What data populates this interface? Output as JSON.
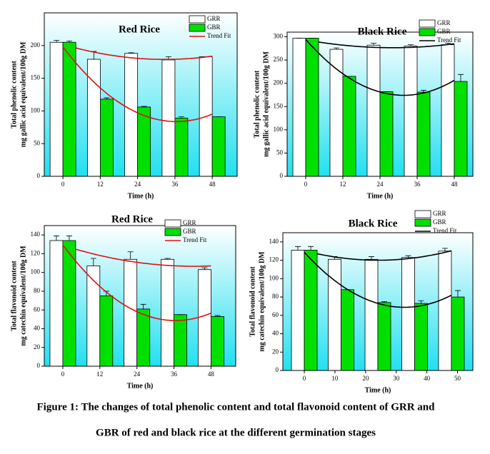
{
  "chart_data": [
    {
      "type": "bar",
      "title": "Red Rice",
      "xlabel": "Time (h)",
      "ylabel": [
        "Total phenolic content",
        "mg gallic acid equivalent/100g DM"
      ],
      "x": [
        0,
        12,
        24,
        36,
        48
      ],
      "xlim": [
        -6,
        56
      ],
      "xticks": [
        0,
        12,
        24,
        36,
        48
      ],
      "ylim": [
        0,
        250
      ],
      "yticks": [
        0,
        50,
        100,
        150,
        200
      ],
      "series": [
        {
          "name": "GRR",
          "color": "#ffffff",
          "values": [
            205,
            179,
            188,
            178,
            183
          ],
          "errors": [
            3,
            12,
            1,
            5,
            0
          ]
        },
        {
          "name": "GBR",
          "color": "#00e000",
          "values": [
            205,
            118,
            106,
            89,
            91
          ],
          "errors": [
            2,
            2,
            1,
            2,
            0
          ]
        }
      ],
      "trend_fit": {
        "name": "Trend Fit",
        "color": "#e01010"
      }
    },
    {
      "type": "bar",
      "title": "Black Rice",
      "xlabel": "Time (h)",
      "ylabel": [
        "Total phenolic content",
        "mg gallic acid equivalent/100g DM"
      ],
      "x": [
        0,
        12,
        24,
        36,
        48
      ],
      "xlim": [
        -6,
        54
      ],
      "xticks": [
        0,
        12,
        24,
        36,
        48
      ],
      "ylim": [
        0,
        310
      ],
      "yticks": [
        0,
        50,
        100,
        150,
        200,
        250,
        300
      ],
      "series": [
        {
          "name": "GRR",
          "color": "#ffffff",
          "values": [
            297,
            273,
            282,
            280,
            283
          ],
          "errors": [
            0,
            3,
            4,
            3,
            3
          ]
        },
        {
          "name": "GBR",
          "color": "#00e000",
          "values": [
            297,
            215,
            182,
            181,
            204
          ],
          "errors": [
            0,
            0,
            0,
            4,
            15
          ]
        }
      ],
      "trend_fit": {
        "name": "Trend Fit",
        "color": "#000000"
      }
    },
    {
      "type": "bar",
      "title": "Red Rice",
      "xlabel": "Time (h)",
      "ylabel": [
        "Total flavonoid content",
        "mg catechin equivalent/100g DM"
      ],
      "x": [
        0,
        12,
        24,
        36,
        48
      ],
      "xlim": [
        -6,
        56
      ],
      "xticks": [
        0,
        12,
        24,
        36,
        48
      ],
      "ylim": [
        0,
        150
      ],
      "yticks": [
        0,
        20,
        40,
        60,
        80,
        100,
        120,
        140
      ],
      "series": [
        {
          "name": "GRR",
          "color": "#ffffff",
          "values": [
            134,
            107,
            114,
            114,
            103
          ],
          "errors": [
            5,
            8,
            8,
            1,
            2
          ]
        },
        {
          "name": "GBR",
          "color": "#00e000",
          "values": [
            134,
            75,
            61,
            55,
            53
          ],
          "errors": [
            5,
            5,
            5,
            0,
            1
          ]
        }
      ],
      "trend_fit": {
        "name": "Trend Fit",
        "color": "#e01010"
      }
    },
    {
      "type": "bar",
      "title": "Black Rice",
      "xlabel": "Time (h)",
      "ylabel": [
        "Total flavonoid content",
        "mg catechin equivalent/100g DM"
      ],
      "x": [
        0,
        12,
        24,
        36,
        48
      ],
      "xlim": [
        -7,
        55
      ],
      "xticks": [
        0,
        10,
        20,
        30,
        40,
        50
      ],
      "ylim": [
        0,
        150
      ],
      "yticks": [
        0,
        20,
        40,
        60,
        80,
        100,
        120,
        140
      ],
      "series": [
        {
          "name": "GRR",
          "color": "#ffffff",
          "values": [
            131,
            121,
            121,
            123,
            130
          ],
          "errors": [
            4,
            3,
            3,
            2,
            3
          ]
        },
        {
          "name": "GBR",
          "color": "#00e000",
          "values": [
            131,
            88,
            74,
            73,
            80
          ],
          "errors": [
            4,
            0,
            1,
            3,
            7
          ]
        }
      ],
      "trend_fit": {
        "name": "Trend Fit",
        "color": "#000000"
      }
    }
  ],
  "caption": [
    "Figure 1: The changes of total phenolic content and total flavonoid content of GRR and",
    "GBR of red and black rice at the different germination stages"
  ]
}
